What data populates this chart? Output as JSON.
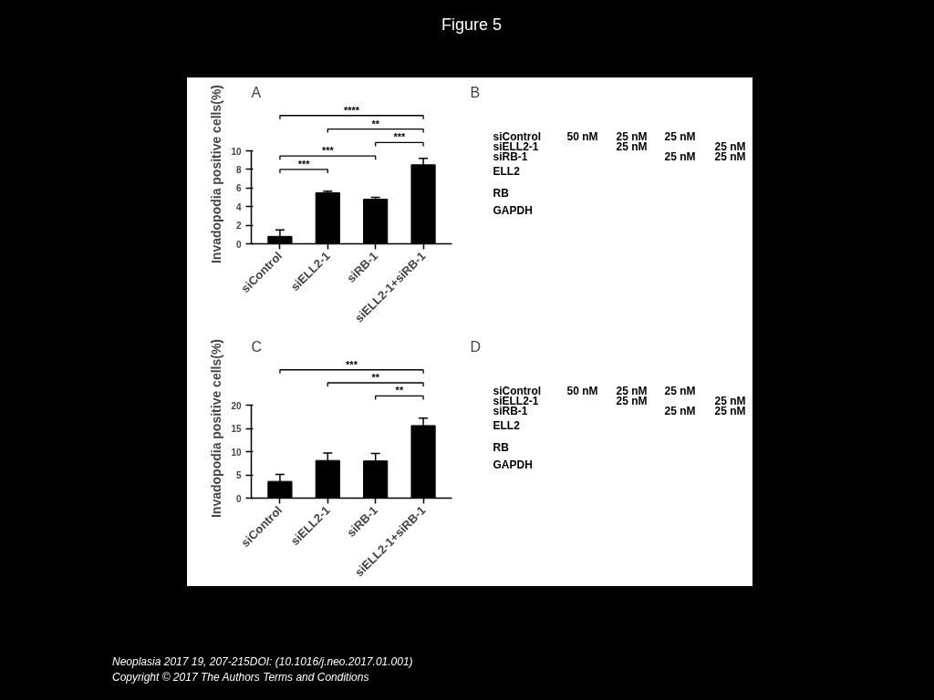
{
  "chart_data": [
    {
      "type": "other",
      "title": "Figure 5",
      "annotations": [
        "Neoplasia 2017 19, 207-215DOI: (10.1016/j.neo.2017.01.001)",
        "Copyright © 2017 The Authors Terms and Conditions"
      ]
    },
    {
      "type": "bar",
      "title": "A",
      "ylabel": "Invadopodia positive cells(%)",
      "categories": [
        "siControl",
        "siELL2-1",
        "siRB-1",
        "siELL2-1+siRB-1"
      ],
      "values": [
        0.8,
        5.5,
        4.8,
        8.5
      ],
      "errors": [
        0.7,
        0.15,
        0.2,
        0.7
      ],
      "color": "#000000",
      "ylim": [
        0,
        10
      ],
      "yticks": [
        0,
        2,
        4,
        6,
        8,
        10
      ],
      "grid": false,
      "annotations": [
        "****",
        "**",
        "***",
        "***",
        "***"
      ]
    },
    {
      "type": "other",
      "title": "B",
      "annotations": [
        "siControl",
        "50 nM",
        "25 nM",
        "25 nM",
        "siELL2-1",
        "25 nM",
        "25 nM",
        "siRB-1",
        "25 nM",
        "25 nM",
        "ELL2",
        "RB",
        "GAPDH"
      ]
    },
    {
      "type": "bar",
      "title": "C",
      "ylabel": "Invadopodia positive cells(%)",
      "categories": [
        "siControl",
        "siELL2-1",
        "siRB-1",
        "siELL2-1+siRB-1"
      ],
      "values": [
        3.6,
        8.1,
        8.0,
        15.6
      ],
      "errors": [
        1.5,
        1.6,
        1.6,
        1.6
      ],
      "color": "#000000",
      "ylim": [
        0,
        20
      ],
      "yticks": [
        0,
        5,
        10,
        15,
        20
      ],
      "grid": false,
      "annotations": [
        "***",
        "**",
        "**"
      ]
    },
    {
      "type": "other",
      "title": "D",
      "annotations": [
        "siControl",
        "50 nM",
        "25 nM",
        "25 nM",
        "siELL2-1",
        "25 nM",
        "25 nM",
        "siRB-1",
        "25 nM",
        "25 nM",
        "ELL2",
        "RB",
        "GAPDH"
      ]
    }
  ]
}
